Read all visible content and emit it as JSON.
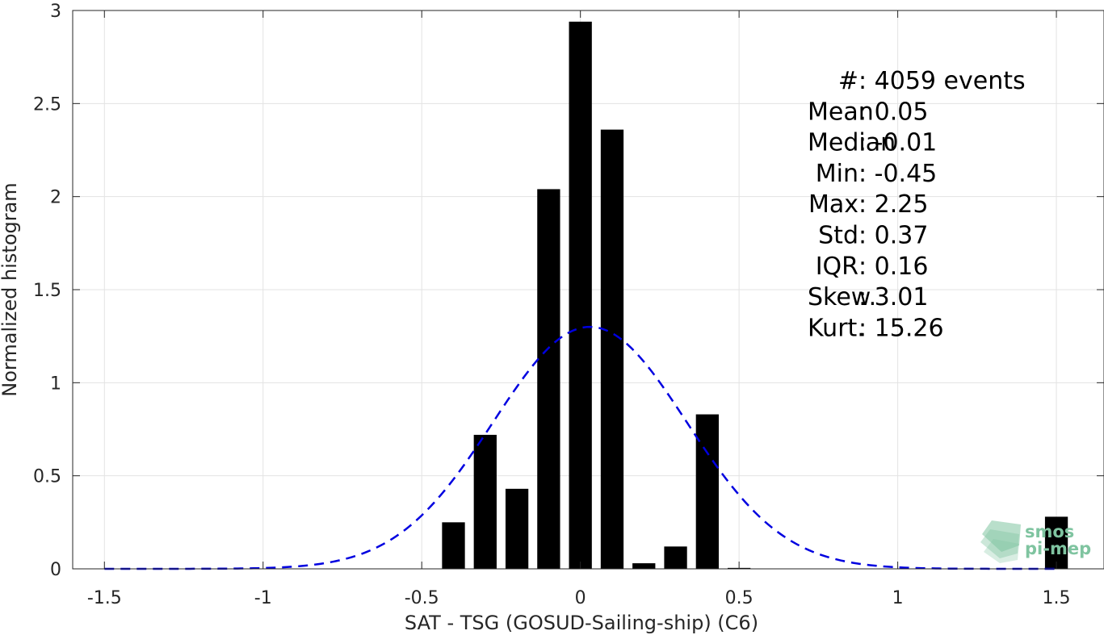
{
  "chart_data": {
    "type": "bar",
    "xlabel": "SAT - TSG (GOSUD-Sailing-ship) (C6)",
    "ylabel": "Normalized histogram",
    "xlim": [
      -1.6,
      1.65
    ],
    "ylim": [
      0,
      3
    ],
    "x_ticks": [
      -1.5,
      -1,
      -0.5,
      0,
      0.5,
      1,
      1.5
    ],
    "x_tick_labels": [
      "-1.5",
      "-1",
      "-0.5",
      "0",
      "0.5",
      "1",
      "1.5"
    ],
    "y_ticks": [
      0,
      0.5,
      1,
      1.5,
      2,
      2.5,
      3
    ],
    "y_tick_labels": [
      "0",
      "0.5",
      "1",
      "1.5",
      "2",
      "2.5",
      "3"
    ],
    "grid": true,
    "bar_color": "#000000",
    "bar_width": 0.072,
    "bars": [
      {
        "x": -0.4,
        "value": 0.25
      },
      {
        "x": -0.3,
        "value": 0.72
      },
      {
        "x": -0.2,
        "value": 0.43
      },
      {
        "x": -0.1,
        "value": 2.04
      },
      {
        "x": 0.0,
        "value": 2.94
      },
      {
        "x": 0.1,
        "value": 2.36
      },
      {
        "x": 0.2,
        "value": 0.03
      },
      {
        "x": 0.3,
        "value": 0.12
      },
      {
        "x": 0.4,
        "value": 0.83
      },
      {
        "x": 0.5,
        "value": 0.005
      },
      {
        "x": 1.5,
        "value": 0.28
      }
    ],
    "fit_curve": {
      "style": "dashed",
      "color": "#0000e0",
      "mean": 0.03,
      "std": 0.305,
      "peak": 1.3,
      "x_range": [
        -1.5,
        1.5
      ]
    },
    "stats": [
      {
        "label": "#  ",
        "sep": ": ",
        "value": "4059 events"
      },
      {
        "label": "Mean ",
        "sep": ": ",
        "value": "0.05"
      },
      {
        "label": "Median ",
        "sep": ": ",
        "value": "-0.01"
      },
      {
        "label": "Min ",
        "sep": ": ",
        "value": "-0.45"
      },
      {
        "label": "Max ",
        "sep": ": ",
        "value": "2.25"
      },
      {
        "label": "Std ",
        "sep": ": ",
        "value": "0.37"
      },
      {
        "label": "IQR ",
        "sep": ": ",
        "value": "0.16"
      },
      {
        "label": "Skew. ",
        "sep": ": ",
        "value": "3.01"
      },
      {
        "label": "Kurt. ",
        "sep": ": ",
        "value": "15.26"
      }
    ]
  },
  "logo": {
    "line1": "smos",
    "line2": "pi-mep",
    "color": "#7fc4a0"
  }
}
